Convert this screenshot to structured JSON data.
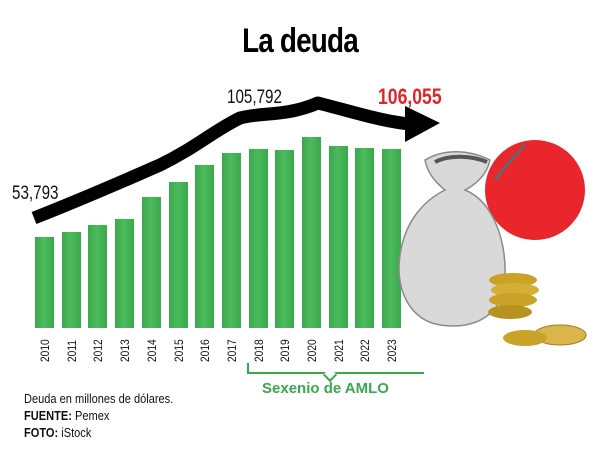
{
  "title": "La deuda",
  "annotations": {
    "start_value": "53,793",
    "peak_value": "105,792",
    "end_value": "106,055"
  },
  "sexenio_label": "Sexenio de AMLO",
  "notes": {
    "units": "Deuda en millones de dólares.",
    "source_label": "FUENTE:",
    "source_value": "Pemex",
    "photo_label": "FOTO:",
    "photo_value": "iStock"
  },
  "colors": {
    "bar": "#3aa84c",
    "highlight": "#e02525",
    "trend_arrow": "#000000",
    "sexenio": "#3aa84c"
  },
  "chart_data": {
    "type": "bar",
    "title": "La deuda",
    "xlabel": "",
    "ylabel": "Deuda en millones de dólares",
    "categories": [
      "2010",
      "2011",
      "2012",
      "2013",
      "2014",
      "2015",
      "2016",
      "2017",
      "2018",
      "2019",
      "2020",
      "2021",
      "2022",
      "2023"
    ],
    "values": [
      53793,
      56800,
      60900,
      64500,
      77500,
      86300,
      96400,
      103500,
      105792,
      105200,
      112900,
      107700,
      106500,
      106055
    ],
    "labeled_points": [
      {
        "category": "2010",
        "label": "53,793"
      },
      {
        "category": "2018",
        "label": "105,792"
      },
      {
        "category": "2023",
        "label": "106,055",
        "color": "#e02525"
      }
    ],
    "overlay": "black trend arrow above bars pointing right",
    "highlight_range": {
      "from": "2018",
      "to": "2023",
      "label": "Sexenio de AMLO"
    },
    "grid": false,
    "legend": null,
    "ylim": [
      0,
      120000
    ]
  }
}
